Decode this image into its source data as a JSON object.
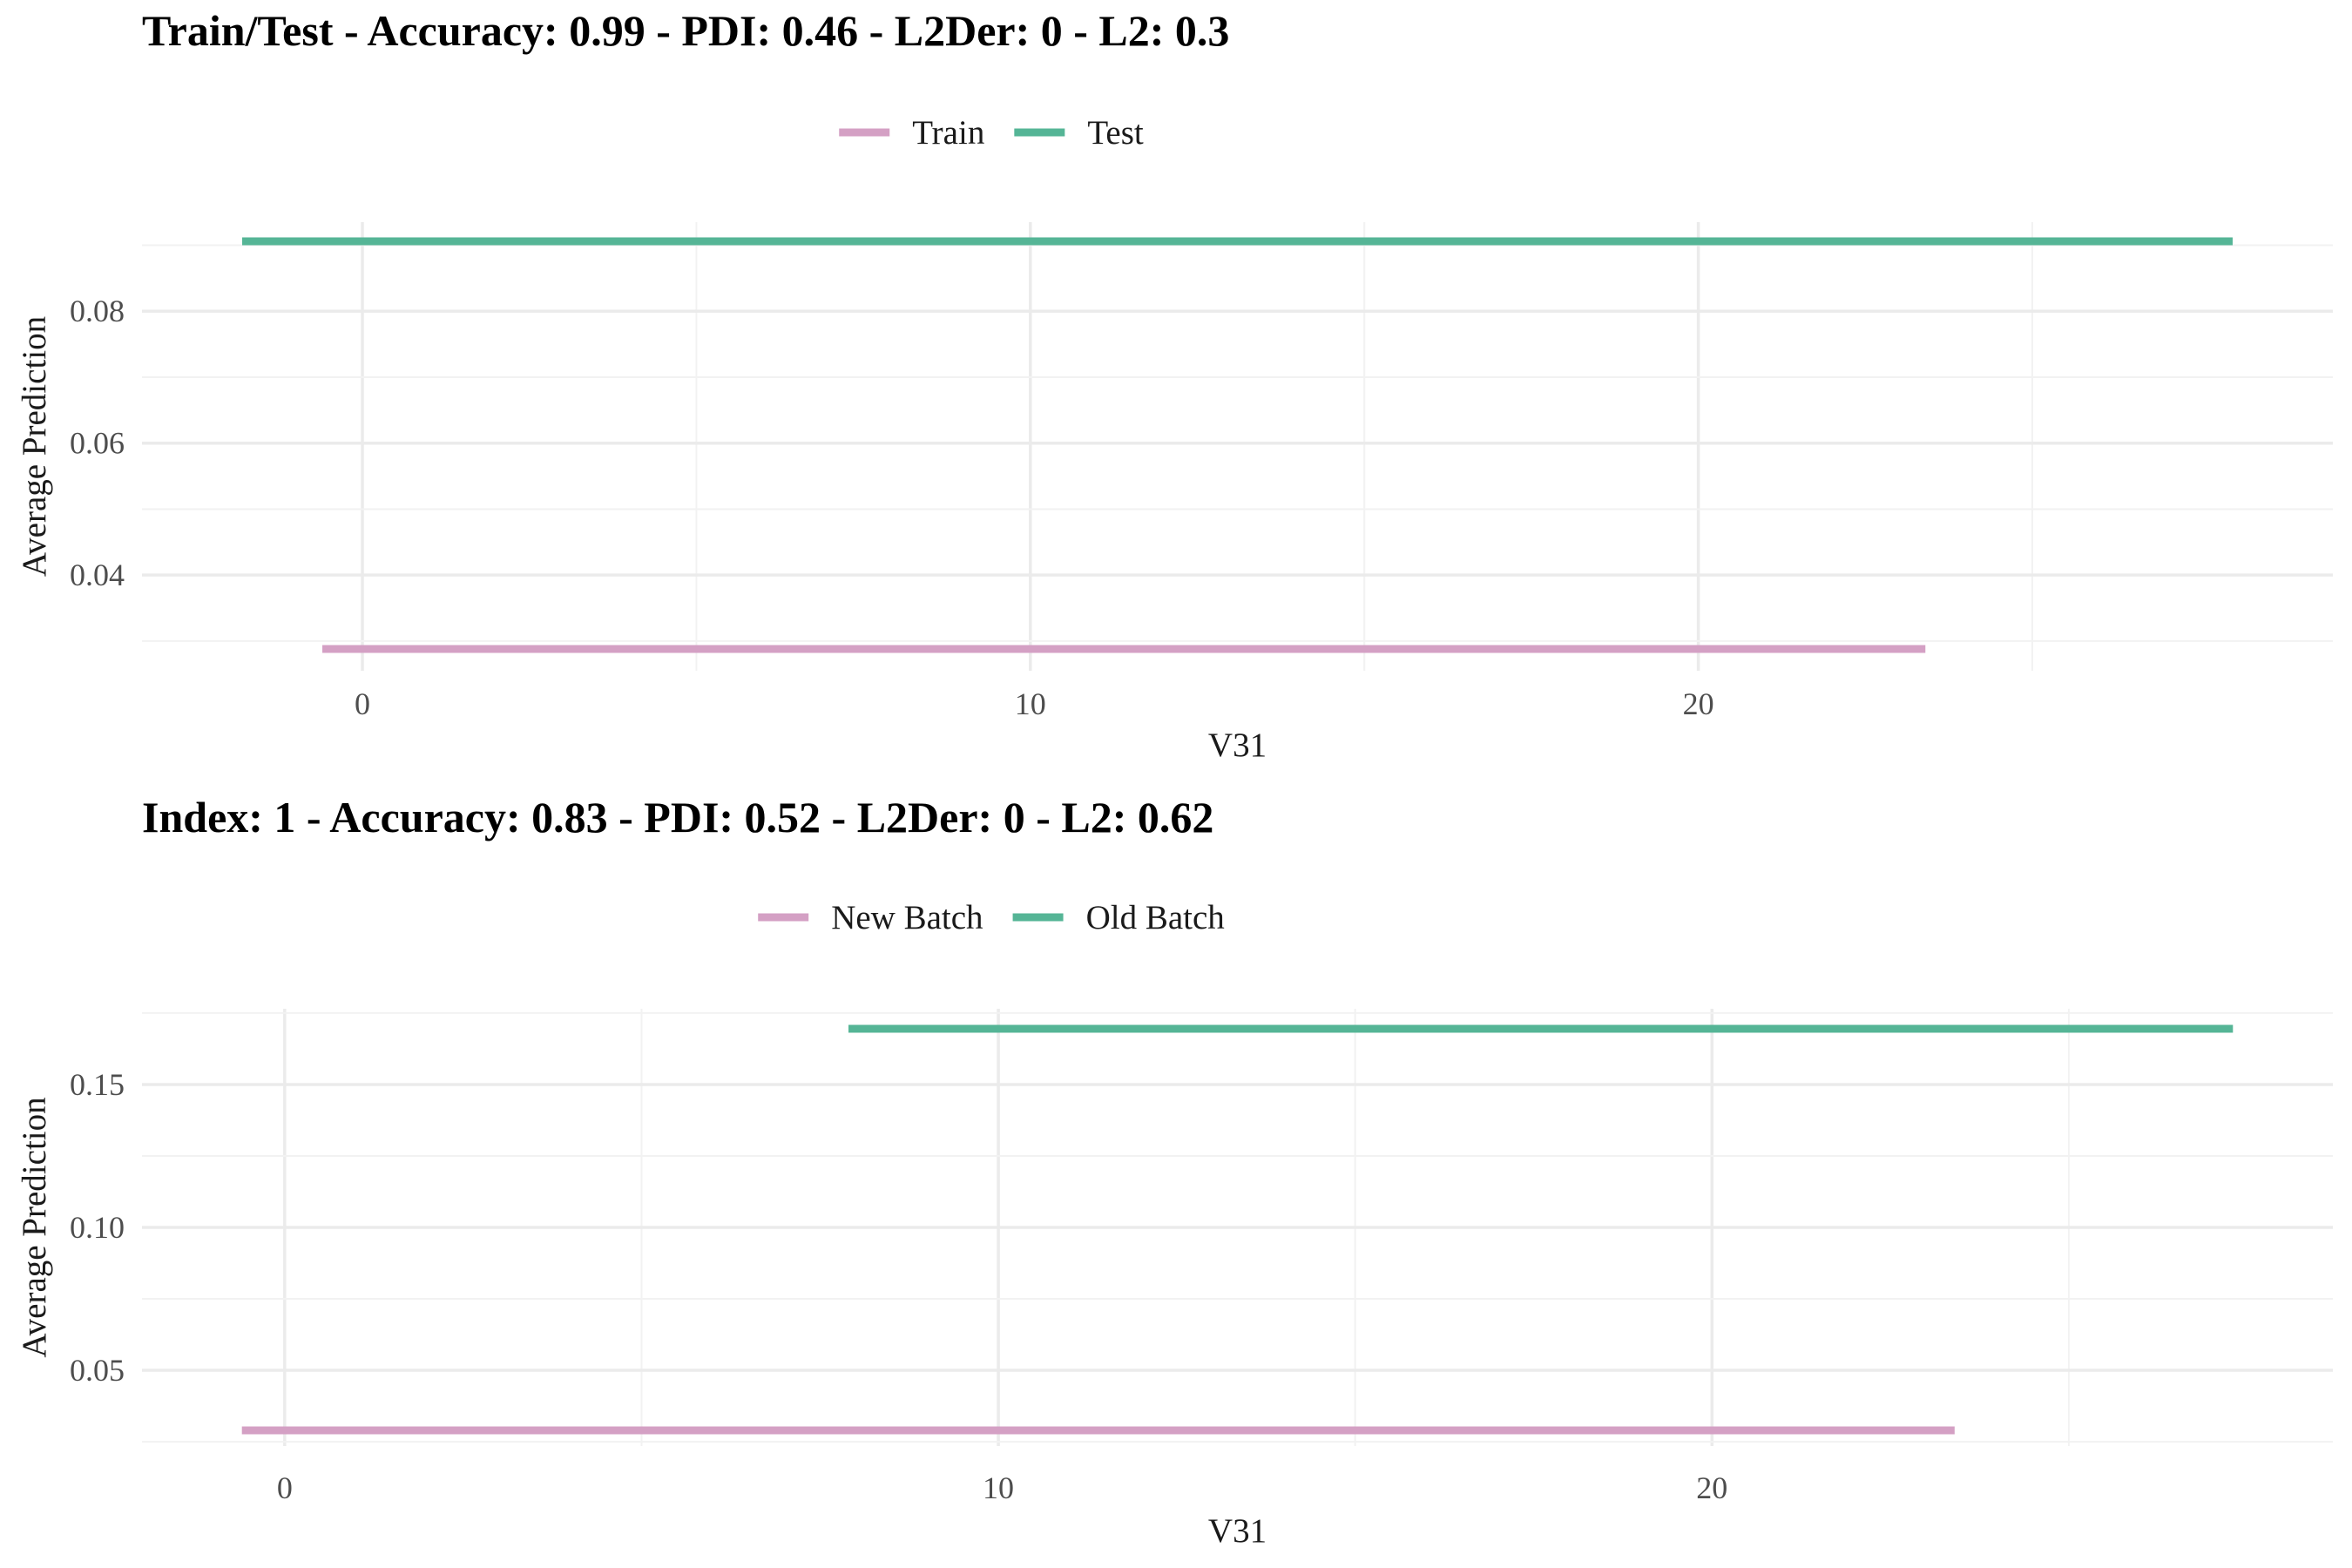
{
  "chart_data": [
    {
      "type": "line",
      "title": "Train/Test - Accuracy: 0.99 - PDI: 0.46 - L2Der: 0 - L2: 0.3",
      "xlabel": "V31",
      "ylabel": "Average Prediction",
      "legend_position": "top",
      "grid": true,
      "xlim": [
        -3.3,
        29.5
      ],
      "ylim": [
        0.0255,
        0.0935
      ],
      "x_ticks": [
        0,
        10,
        20
      ],
      "y_ticks": [
        0.04,
        0.06,
        0.08
      ],
      "y_tick_labels": [
        "0.04",
        "0.06",
        "0.08"
      ],
      "series": [
        {
          "name": "Train",
          "color": "#D4A0C4",
          "x": [
            -0.6,
            23.4
          ],
          "y": [
            0.0288,
            0.0288
          ]
        },
        {
          "name": "Test",
          "color": "#55B596",
          "x": [
            -1.8,
            28.0
          ],
          "y": [
            0.0906,
            0.0906
          ]
        }
      ]
    },
    {
      "type": "line",
      "title": "Index: 1 - Accuracy: 0.83 - PDI: 0.52 - L2Der: 0 - L2: 0.62",
      "xlabel": "V31",
      "ylabel": "Average Prediction",
      "legend_position": "top",
      "grid": true,
      "xlim": [
        -2.0,
        28.7
      ],
      "ylim": [
        0.0235,
        0.1765
      ],
      "x_ticks": [
        0,
        10,
        20
      ],
      "y_ticks": [
        0.05,
        0.1,
        0.15
      ],
      "y_tick_labels": [
        "0.05",
        "0.10",
        "0.15"
      ],
      "series": [
        {
          "name": "New Batch",
          "color": "#D4A0C4",
          "x": [
            -0.6,
            23.4
          ],
          "y": [
            0.029,
            0.029
          ]
        },
        {
          "name": "Old Batch",
          "color": "#55B596",
          "x": [
            7.9,
            27.3
          ],
          "y": [
            0.1695,
            0.1695
          ]
        }
      ]
    }
  ]
}
